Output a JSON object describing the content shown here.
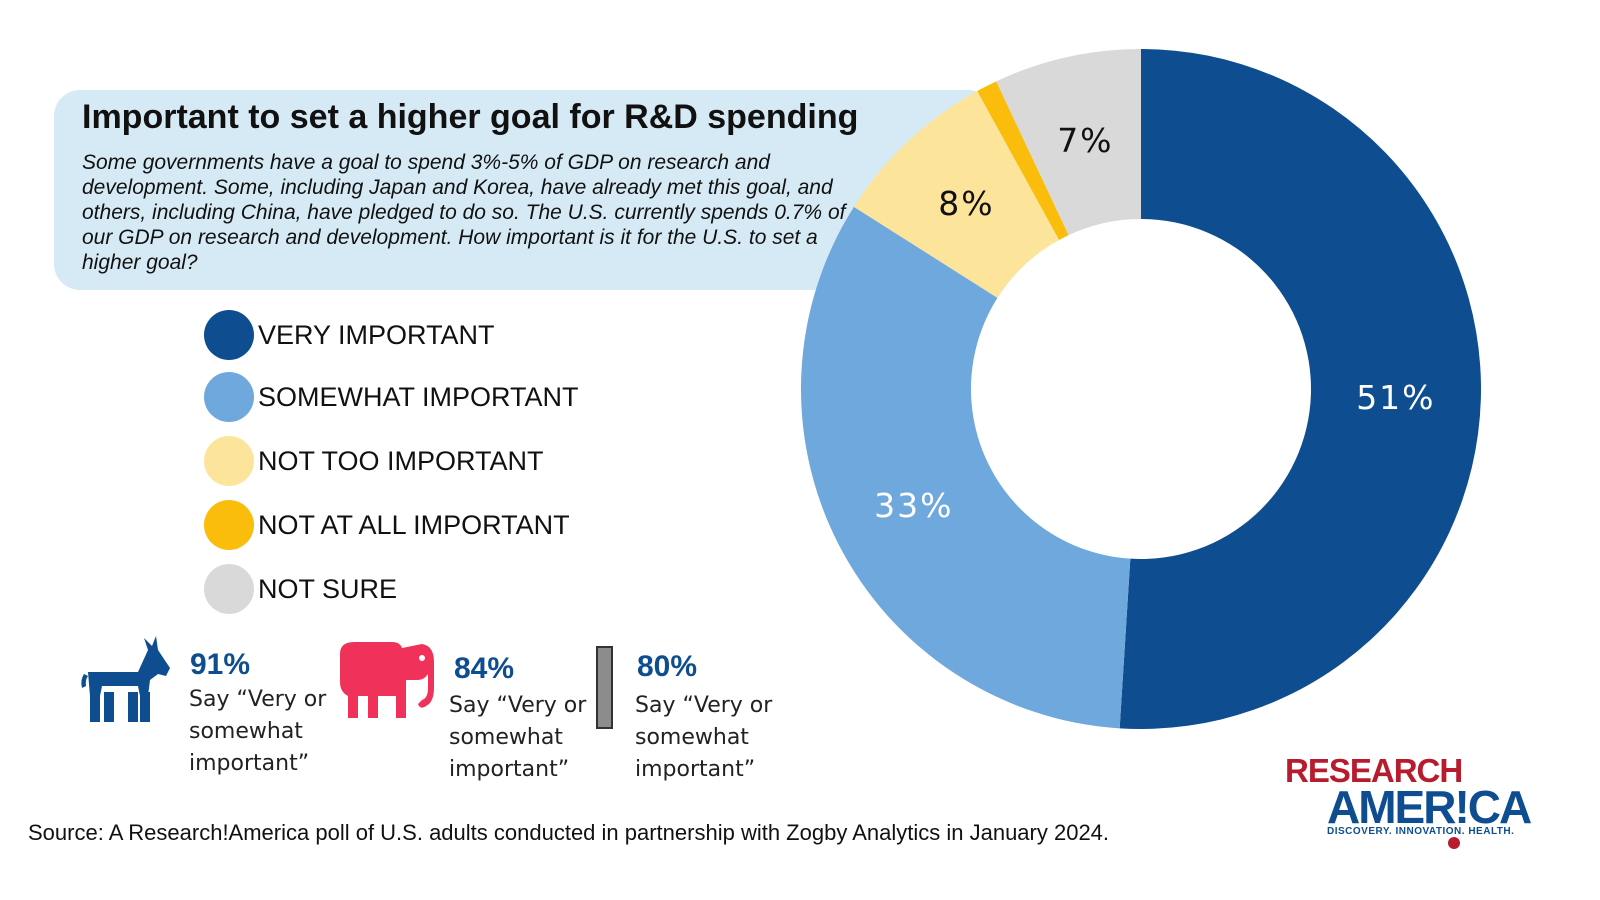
{
  "title": "Important to set a higher goal for R&D spending",
  "question": "Some governments have a goal to spend 3%-5% of GDP on research and development. Some, including Japan and Korea, have already met this goal, and others, including China, have pledged to do so. The U.S. currently spends 0.7% of our GDP on research and development. How important is it for the U.S. to set a higher goal?",
  "legend": [
    {
      "label": "VERY IMPORTANT",
      "color": "#0e4d8f"
    },
    {
      "label": "SOMEWHAT IMPORTANT",
      "color": "#6fa8dc"
    },
    {
      "label": "NOT TOO IMPORTANT",
      "color": "#fde49b"
    },
    {
      "label": "NOT AT ALL IMPORTANT",
      "color": "#fbbd0b"
    },
    {
      "label": "NOT SURE",
      "color": "#d9d9d9"
    }
  ],
  "chart_data": {
    "type": "pie",
    "variant": "donut",
    "categories": [
      "VERY IMPORTANT",
      "SOMEWHAT IMPORTANT",
      "NOT TOO IMPORTANT",
      "NOT AT ALL IMPORTANT",
      "NOT SURE"
    ],
    "values": [
      51,
      33,
      8,
      1,
      7
    ],
    "data_labels": [
      "51%",
      "33%",
      "8%",
      "",
      "7%"
    ],
    "colors": [
      "#0e4d8f",
      "#6fa8dc",
      "#fde49b",
      "#fbbd0b",
      "#d9d9d9"
    ],
    "label_colors": [
      "#ffffff",
      "#ffffff",
      "#111111",
      "#111111",
      "#111111"
    ],
    "title": "Important to set a higher goal for R&D spending",
    "legend": "left"
  },
  "party_stats": [
    {
      "party": "democrat",
      "icon": "donkey-icon",
      "percent": "91%",
      "note_line1": "Say “Very or",
      "note_line2": "somewhat",
      "note_line3": "important”",
      "color": "#0e4d8f"
    },
    {
      "party": "republican",
      "icon": "elephant-icon",
      "percent": "84%",
      "note_line1": "Say “Very or",
      "note_line2": "somewhat",
      "note_line3": "important”",
      "color": "#f0325a"
    },
    {
      "party": "independent",
      "icon": "independent-bar-icon",
      "percent": "80%",
      "note_line1": "Say “Very or",
      "note_line2": "somewhat",
      "note_line3": "important”",
      "color": "#8c8c8c"
    }
  ],
  "source": "Source:  A Research!America poll of U.S. adults conducted in partnership with Zogby Analytics in January 2024.",
  "logo": {
    "line1": "RESEARCH",
    "line2": "AMER!CA",
    "tagline": "DISCOVERY. INNOVATION. HEALTH."
  }
}
